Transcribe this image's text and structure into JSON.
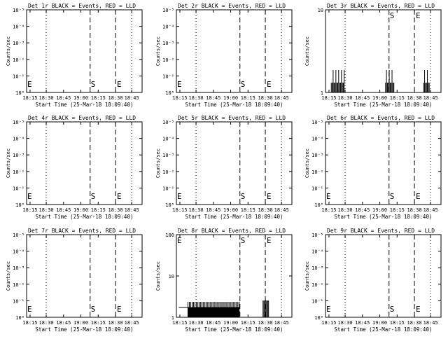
{
  "common": {
    "xlabel": "Start Time (25-Mar-18 18:09:40)",
    "ylabel": "Counts/sec",
    "x_ticks": [
      "18:15",
      "18:30",
      "18:45",
      "19:00",
      "18:15",
      "18:30",
      "18:45"
    ],
    "marker_S": "S",
    "marker_E": "E"
  },
  "chart_data": [
    {
      "type": "line",
      "title": "Det 1r BLACK = Events, RED = LLD",
      "yscale": "log",
      "y_ticks": [
        "10⁰",
        "10⁻¹",
        "10⁻²",
        "10⁻³",
        "10⁻⁴",
        "10⁻⁵"
      ],
      "series": [
        {
          "values": []
        }
      ]
    },
    {
      "type": "line",
      "title": "Det 2r BLACK = Events, RED = LLD",
      "yscale": "log",
      "y_ticks": [
        "10⁰",
        "10⁻¹",
        "10⁻²",
        "10⁻³",
        "10⁻⁴",
        "10⁻⁵"
      ],
      "series": [
        {
          "values": []
        }
      ]
    },
    {
      "type": "line",
      "title": "Det 3r BLACK = Events, RED = LLD",
      "yscale": "log",
      "y_ticks": [
        "1",
        "10"
      ],
      "series": [
        {
          "values": []
        }
      ]
    },
    {
      "type": "line",
      "title": "Det 4r BLACK = Events, RED = LLD",
      "yscale": "log",
      "y_ticks": [
        "10⁰",
        "10⁻¹",
        "10⁻²",
        "10⁻³",
        "10⁻⁴",
        "10⁻⁵"
      ],
      "series": [
        {
          "values": []
        }
      ]
    },
    {
      "type": "line",
      "title": "Det 5r BLACK = Events, RED = LLD",
      "yscale": "log",
      "y_ticks": [
        "10⁰",
        "10⁻¹",
        "10⁻²",
        "10⁻³",
        "10⁻⁴",
        "10⁻⁵"
      ],
      "series": [
        {
          "values": []
        }
      ]
    },
    {
      "type": "line",
      "title": "Det 6r BLACK = Events, RED = LLD",
      "yscale": "log",
      "y_ticks": [
        "10⁰",
        "10⁻¹",
        "10⁻²",
        "10⁻³",
        "10⁻⁴",
        "10⁻⁵"
      ],
      "series": [
        {
          "values": []
        }
      ]
    },
    {
      "type": "line",
      "title": "Det 7r BLACK = Events, RED = LLD",
      "yscale": "log",
      "y_ticks": [
        "10⁰",
        "10⁻¹",
        "10⁻²",
        "10⁻³",
        "10⁻⁴",
        "10⁻⁵"
      ],
      "series": [
        {
          "values": []
        }
      ]
    },
    {
      "type": "line",
      "title": "Det 8r BLACK = Events, RED = LLD",
      "yscale": "log",
      "y_ticks": [
        "1",
        "10",
        "100"
      ],
      "series": [
        {
          "values": []
        }
      ]
    },
    {
      "type": "line",
      "title": "Det 9r BLACK = Events, RED = LLD",
      "yscale": "log",
      "y_ticks": [
        "10⁰",
        "10⁻¹",
        "10⁻²",
        "10⁻³",
        "10⁻⁴",
        "10⁻⁵"
      ],
      "series": [
        {
          "values": []
        }
      ]
    }
  ]
}
